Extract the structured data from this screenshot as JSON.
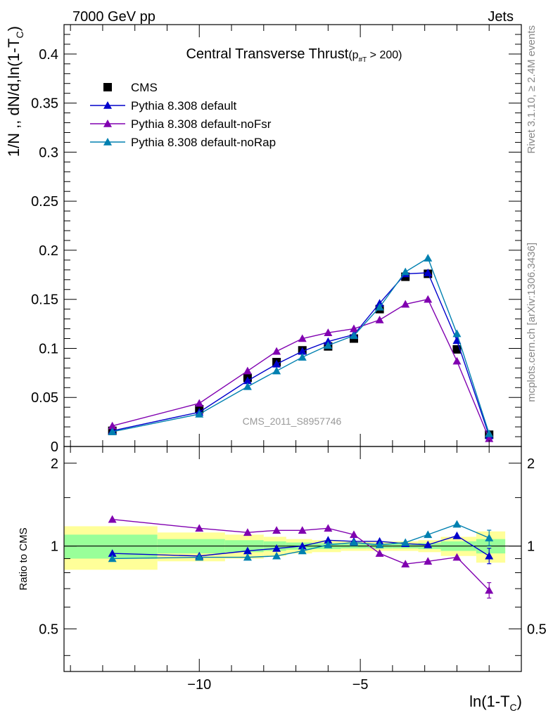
{
  "header": {
    "energy": "7000 GeV pp",
    "process": "Jets"
  },
  "side_labels": {
    "rivet": "Rivet 3.1.10, ≥ 2.4M events",
    "mcplots": "mcplots.cern.ch [arXiv:1306.3436]"
  },
  "colors": {
    "cms": "#000000",
    "default": "#0000cc",
    "noFsr": "#8000b0",
    "noRap": "#0080b0",
    "band_inner": "#99ff99",
    "band_outer": "#ffff99"
  },
  "chart_data": [
    {
      "type": "scatter",
      "title_main": "Central Transverse Thrust",
      "title_sub": "(p",
      "title_sub_index": "#T",
      "title_sub_tail": " > 200)",
      "watermark": "CMS_2011_S8957746",
      "ylabel_main": "1/N ,, dN/d,ln(1-T",
      "ylabel_sub": "C",
      "ylabel_tail": ")",
      "xlim": [
        -14.2,
        -0.0
      ],
      "ylim": [
        0,
        0.43
      ],
      "yticks": [
        "0",
        "0.05",
        "0.1",
        "0.15",
        "0.2",
        "0.25",
        "0.3",
        "0.35",
        "0.4"
      ],
      "ytick_values": [
        0,
        0.05,
        0.1,
        0.15,
        0.2,
        0.25,
        0.3,
        0.35,
        0.4
      ],
      "legend_position": "top-left",
      "x": [
        -12.7,
        -10.0,
        -8.5,
        -7.6,
        -6.8,
        -6.0,
        -5.2,
        -4.4,
        -3.6,
        -2.9,
        -2.0,
        -1.0
      ],
      "series": [
        {
          "name": "CMS",
          "marker": "square",
          "values": [
            0.016,
            0.038,
            0.07,
            0.086,
            0.098,
            0.102,
            0.11,
            0.14,
            0.173,
            0.176,
            0.099,
            0.012
          ]
        },
        {
          "name": "Pythia 8.308 default",
          "marker": "triangle",
          "values": [
            0.016,
            0.035,
            0.067,
            0.084,
            0.097,
            0.107,
            0.114,
            0.146,
            0.176,
            0.177,
            0.108,
            0.011
          ]
        },
        {
          "name": "Pythia 8.308 default-noFsr",
          "marker": "triangle",
          "values": [
            0.021,
            0.044,
            0.077,
            0.097,
            0.11,
            0.116,
            0.12,
            0.129,
            0.145,
            0.15,
            0.087,
            0.008
          ]
        },
        {
          "name": "Pythia 8.308 default-noRap",
          "marker": "triangle",
          "values": [
            0.015,
            0.033,
            0.061,
            0.077,
            0.091,
            0.103,
            0.113,
            0.142,
            0.178,
            0.192,
            0.115,
            0.013
          ]
        }
      ]
    },
    {
      "type": "scatter",
      "ylabel": "Ratio to CMS",
      "xlabel_main": "ln(1-T",
      "xlabel_sub": "C",
      "xlabel_tail": ")",
      "xlim": [
        -14.2,
        -0.0
      ],
      "ylim": [
        0.35,
        2.3
      ],
      "yticks": [
        "0.5",
        "1",
        "2"
      ],
      "ytick_values": [
        0.5,
        1,
        2
      ],
      "xticks": [
        "−10",
        "−5"
      ],
      "xtick_values": [
        -10,
        -5
      ],
      "x": [
        -12.7,
        -10.0,
        -8.5,
        -7.6,
        -6.8,
        -6.0,
        -5.2,
        -4.4,
        -3.6,
        -2.9,
        -2.0,
        -1.0
      ],
      "bands": {
        "edges": [
          -14.2,
          -11.3,
          -9.2,
          -8.0,
          -7.3,
          -6.5,
          -5.6,
          -4.8,
          -4.0,
          -3.2,
          -2.5,
          -1.4,
          -0.5
        ],
        "inner_low": [
          0.9,
          0.94,
          0.95,
          0.96,
          0.97,
          0.975,
          0.98,
          0.98,
          0.98,
          0.975,
          0.96,
          0.94
        ],
        "inner_high": [
          1.1,
          1.06,
          1.05,
          1.04,
          1.03,
          1.025,
          1.02,
          1.02,
          1.02,
          1.025,
          1.04,
          1.06
        ],
        "outer_low": [
          0.82,
          0.88,
          0.9,
          0.92,
          0.94,
          0.95,
          0.96,
          0.96,
          0.96,
          0.95,
          0.92,
          0.87
        ],
        "outer_high": [
          1.18,
          1.12,
          1.1,
          1.08,
          1.06,
          1.05,
          1.04,
          1.04,
          1.04,
          1.05,
          1.08,
          1.13
        ]
      },
      "series": [
        {
          "name": "Pythia 8.308 default",
          "values": [
            0.94,
            0.92,
            0.96,
            0.98,
            1.0,
            1.05,
            1.04,
            1.04,
            1.02,
            1.01,
            1.09,
            0.92
          ]
        },
        {
          "name": "Pythia 8.308 default-noFsr",
          "values": [
            1.25,
            1.16,
            1.12,
            1.14,
            1.14,
            1.16,
            1.1,
            0.94,
            0.86,
            0.88,
            0.91,
            0.69
          ]
        },
        {
          "name": "Pythia 8.308 default-noRap",
          "values": [
            0.9,
            0.91,
            0.91,
            0.92,
            0.96,
            1.01,
            1.03,
            1.01,
            1.03,
            1.1,
            1.2,
            1.07
          ]
        }
      ]
    }
  ]
}
